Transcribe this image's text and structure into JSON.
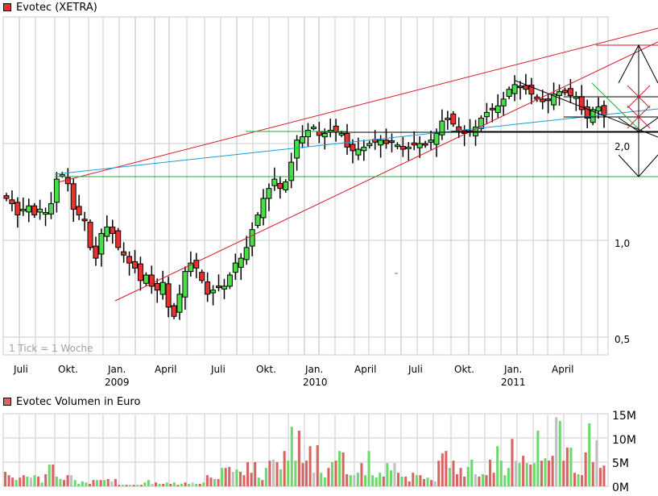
{
  "price_chart": {
    "title": "Evotec (XETRA)",
    "legend_color": "#e8322f",
    "tick_note": "1 Tick = 1 Woche",
    "y_ticks": [
      "2,0",
      "1,0",
      "0,5"
    ],
    "x_month_labels": [
      "Juli",
      "Okt.",
      "Jan.",
      "April",
      "Juli",
      "Okt.",
      "Jan.",
      "April",
      "Juli",
      "Okt.",
      "Jan.",
      "April"
    ],
    "x_year_labels": [
      "2009",
      "2010",
      "2011"
    ]
  },
  "volume_chart": {
    "title": "Evotec Volumen in Euro",
    "legend_color": "#d96464",
    "y_ticks": [
      "15M",
      "10M",
      "5M",
      "0M"
    ]
  },
  "colors": {
    "up": "#46e046",
    "down": "#e8322f",
    "vol_up": "#6bd96b",
    "vol_down": "#d96464",
    "vol_neutral": "#c0c0c0",
    "grid": "#dcdcdc",
    "trend_red": "#d7192a",
    "trend_blue": "#1a9bd7",
    "trend_green": "#22a83a"
  },
  "chart_data": [
    {
      "type": "candlestick",
      "title": "Evotec (XETRA)",
      "xlabel": "",
      "ylabel": "",
      "y_scale": "log",
      "ylim": [
        0.45,
        3.6
      ],
      "y_ticks": [
        0.5,
        1.0,
        2.0
      ],
      "x_tick_labels": [
        "Juli 2008",
        "Okt. 2008",
        "Jan. 2009",
        "April 2009",
        "Juli 2009",
        "Okt. 2009",
        "Jan. 2010",
        "April 2010",
        "Juli 2010",
        "Okt. 2010",
        "Jan. 2011",
        "April 2011"
      ],
      "interval": "weekly",
      "approx_weekly_close": [
        1.35,
        1.3,
        1.2,
        1.25,
        1.28,
        1.2,
        1.25,
        1.22,
        1.3,
        1.55,
        1.6,
        1.5,
        1.25,
        1.2,
        1.15,
        0.95,
        0.88,
        1.05,
        1.1,
        1.05,
        0.95,
        0.9,
        0.85,
        0.82,
        0.75,
        0.78,
        0.72,
        0.7,
        0.74,
        0.62,
        0.58,
        0.68,
        0.8,
        0.85,
        0.82,
        0.75,
        0.68,
        0.7,
        0.72,
        0.72,
        0.78,
        0.85,
        0.88,
        0.95,
        1.08,
        1.2,
        1.35,
        1.45,
        1.55,
        1.45,
        1.52,
        1.75,
        2.05,
        2.1,
        2.2,
        2.25,
        2.12,
        2.15,
        2.2,
        2.18,
        2.15,
        1.95,
        1.9,
        1.92,
        1.95,
        2.0,
        2.02,
        2.05,
        2.0,
        2.02,
        1.98,
        1.92,
        1.95,
        1.98,
        2.0,
        1.98,
        2.05,
        2.15,
        2.35,
        2.4,
        2.3,
        2.2,
        2.15,
        2.18,
        2.25,
        2.4,
        2.5,
        2.55,
        2.62,
        2.75,
        2.95,
        3.05,
        3.0,
        2.95,
        2.85,
        2.75,
        2.7,
        2.72,
        2.85,
        2.9,
        2.88,
        2.82,
        2.8,
        2.55,
        2.4,
        2.55,
        2.6,
        2.45
      ],
      "annotations": [
        "Upper red trendline from ~1.6 (Sep 2008) rising to ~3.5",
        "Lower red support line from ~0.7 (Dec 2008) rising to ~3.5",
        "Blue trendline from ~1.6 (Sep 2008) to ~2.35",
        "Green horizontal line at ~1.6",
        "Black horizontal lines near 2.1, 2.3, 2.6",
        "Black measuring arrow from ~1.6 to ~3.3 on the right"
      ]
    },
    {
      "type": "bar",
      "title": "Evotec Volumen in Euro",
      "ylabel": "",
      "ylim": [
        0,
        15000000
      ],
      "y_ticks": [
        "0M",
        "5M",
        "10M",
        "15M"
      ],
      "series": [
        {
          "name": "Volumen",
          "values_millions": [
            3,
            2.3,
            1.8,
            1.3,
            1.8,
            2.3,
            2,
            1.8,
            2.3,
            2,
            0.8,
            2.5,
            4.5,
            4.5,
            2,
            1.5,
            1.3,
            2.3,
            2.3,
            1.3,
            0.5,
            1,
            0.8,
            0.5,
            1.3,
            1.3,
            1.3,
            1.3,
            1.5,
            1,
            1.5,
            0.3,
            0.3,
            0.3,
            0.3,
            0.3,
            0.3,
            0.3,
            0.8,
            1.3,
            0.5,
            0.8,
            0.5,
            0.5,
            0.8,
            0.5,
            0.8,
            0.3,
            0.5,
            0.8,
            0.5,
            0.8,
            0.5,
            0.5,
            0.8,
            2.3,
            1.8,
            1.5,
            1.5,
            3.8,
            3.8,
            4,
            3,
            3.5,
            3,
            2.3,
            5,
            2.8,
            5,
            1.8,
            1.3,
            3.8,
            5.3,
            5.5,
            5,
            3.5,
            7.3,
            5.3,
            12.3,
            5.3,
            11.5,
            4.8,
            5.3,
            8.3,
            2.8,
            8.5,
            2.8,
            1.8,
            3.8,
            5,
            5.3,
            7.3,
            7,
            2.5,
            2.3,
            2.3,
            2.8,
            4.8,
            2.3,
            7.3,
            2.3,
            1.8,
            2.8,
            2,
            4.8,
            3.3,
            4.8,
            2.8,
            2,
            2,
            1,
            2.8,
            2.3,
            2.3,
            1.5,
            1.8,
            1.3,
            1,
            5.3,
            6.8,
            7.3,
            3.8,
            5.3,
            2.5,
            3.8,
            2,
            4,
            5.5,
            2.5,
            2,
            2.5,
            2.3,
            5.5,
            2.8,
            8.3,
            5.3,
            2.3,
            3.8,
            9.8,
            5.3,
            4.8,
            6.3,
            4.8,
            4.5,
            4.8,
            11.5,
            5.3,
            5.8,
            5.3,
            6.3,
            14.3,
            13.5,
            5.3,
            8,
            8,
            2.8,
            2.5,
            2.3,
            7,
            13,
            5,
            9.5,
            3.8,
            4.3
          ]
        }
      ]
    }
  ]
}
